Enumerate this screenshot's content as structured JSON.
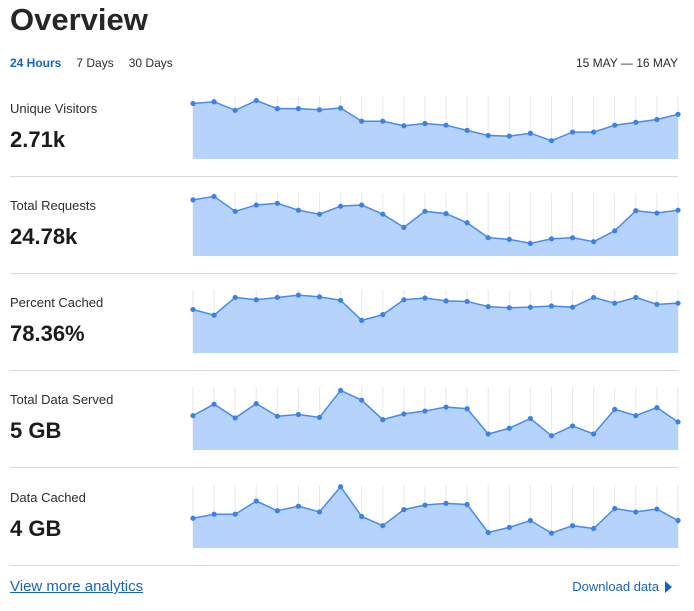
{
  "header": {
    "title": "Overview",
    "tabs": [
      {
        "label": "24 Hours",
        "active": true
      },
      {
        "label": "7 Days",
        "active": false
      },
      {
        "label": "30 Days",
        "active": false
      }
    ],
    "date_range": "15 MAY — 16 MAY"
  },
  "colors": {
    "accent": "#1565c0",
    "area_fill": "#b6d3fb",
    "line": "#4a8ae8",
    "point": "#3b82e6"
  },
  "metrics": [
    {
      "label": "Unique Visitors",
      "value": "2.71k"
    },
    {
      "label": "Total Requests",
      "value": "24.78k"
    },
    {
      "label": "Percent Cached",
      "value": "78.36%"
    },
    {
      "label": "Total Data Served",
      "value": "5 GB"
    },
    {
      "label": "Data Cached",
      "value": "4 GB"
    }
  ],
  "footer": {
    "more_link": "View more analytics",
    "download_label": "Download data",
    "download_icon": "caret-right-icon"
  },
  "chart_data": [
    {
      "type": "area",
      "series": [
        {
          "values": [
            0.97,
            1.0,
            0.85,
            1.02,
            0.88,
            0.88,
            0.86,
            0.89,
            0.66,
            0.66,
            0.58,
            0.62,
            0.59,
            0.5,
            0.41,
            0.4,
            0.45,
            0.32,
            0.47,
            0.47,
            0.59,
            0.64,
            0.69,
            0.78
          ]
        }
      ]
    },
    {
      "type": "area",
      "series": [
        {
          "values": [
            0.98,
            1.04,
            0.78,
            0.89,
            0.92,
            0.8,
            0.73,
            0.87,
            0.89,
            0.73,
            0.5,
            0.78,
            0.74,
            0.58,
            0.32,
            0.29,
            0.22,
            0.3,
            0.32,
            0.25,
            0.44,
            0.79,
            0.75,
            0.8
          ]
        }
      ]
    },
    {
      "type": "area",
      "series": [
        {
          "values": [
            0.76,
            0.66,
            0.97,
            0.93,
            0.97,
            1.01,
            0.98,
            0.92,
            0.57,
            0.67,
            0.93,
            0.96,
            0.91,
            0.9,
            0.81,
            0.79,
            0.8,
            0.82,
            0.8,
            0.97,
            0.87,
            0.97,
            0.85,
            0.87
          ]
        }
      ]
    },
    {
      "type": "area",
      "series": [
        {
          "values": [
            0.6,
            0.8,
            0.56,
            0.81,
            0.59,
            0.62,
            0.57,
            1.04,
            0.87,
            0.53,
            0.63,
            0.68,
            0.75,
            0.72,
            0.28,
            0.38,
            0.55,
            0.25,
            0.42,
            0.28,
            0.71,
            0.6,
            0.74,
            0.49
          ]
        }
      ]
    },
    {
      "type": "area",
      "series": [
        {
          "values": [
            0.52,
            0.59,
            0.59,
            0.82,
            0.65,
            0.73,
            0.63,
            1.07,
            0.55,
            0.39,
            0.67,
            0.75,
            0.78,
            0.76,
            0.27,
            0.36,
            0.48,
            0.26,
            0.39,
            0.34,
            0.69,
            0.63,
            0.68,
            0.48
          ]
        }
      ]
    }
  ]
}
